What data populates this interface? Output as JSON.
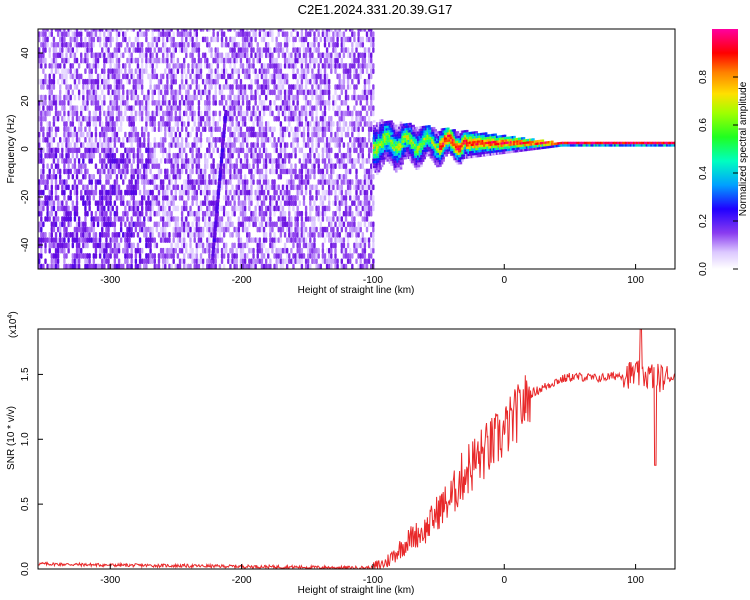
{
  "figure_title": "C2E1.2024.331.20.39.G17",
  "colors": {
    "spectrogram_palette": [
      "#ffffff",
      "#dcc8ff",
      "#9a52f0",
      "#6a10e0",
      "#3c00f0",
      "#0030ff",
      "#00c0ff",
      "#00ff80",
      "#80ff00",
      "#ffd000",
      "#ff6000",
      "#ff0000",
      "#ff0090"
    ],
    "snr_line": "#e8292a"
  },
  "chart_data": [
    {
      "type": "heatmap",
      "xlabel": "Height of straight line (km)",
      "ylabel": "Frequency (Hz)",
      "xlim": [
        -355,
        130
      ],
      "ylim": [
        -50,
        50
      ],
      "x_ticks": [
        -300,
        -200,
        -100,
        0,
        100
      ],
      "y_ticks": [
        -40,
        -20,
        0,
        20,
        40
      ],
      "colorbar": {
        "label": "Normalized spectral amplitude",
        "range": [
          0,
          1
        ],
        "ticks": [
          0.0,
          0.2,
          0.4,
          0.6,
          0.8
        ]
      },
      "features": {
        "noise_region_x": [
          -355,
          -100
        ],
        "carrier_region_x": [
          -100,
          130
        ],
        "carrier_frequency_hz": 2,
        "streak": {
          "x": [
            -222,
            -212
          ],
          "y": [
            -45,
            15
          ]
        }
      }
    },
    {
      "type": "line",
      "xlabel": "Height of straight line (km)",
      "ylabel": "SNR (10 * v/v)",
      "scale_label": "(x10",
      "scale_exp": "4",
      "scale_close": ")",
      "xlim": [
        -355,
        130
      ],
      "ylim": [
        0,
        1.85
      ],
      "x_ticks": [
        -300,
        -200,
        -100,
        0,
        100
      ],
      "y_ticks": [
        0.0,
        0.5,
        1.0,
        1.5
      ],
      "series": [
        {
          "x": [
            -355,
            -300,
            -200,
            -120,
            -100,
            -90,
            -80,
            -70,
            -60,
            -50,
            -40,
            -30,
            -20,
            -10,
            0,
            10,
            20,
            30,
            40,
            50,
            60,
            70,
            80,
            90,
            100,
            110,
            120,
            130
          ],
          "y": [
            0.04,
            0.03,
            0.02,
            0.01,
            0.01,
            0.05,
            0.15,
            0.25,
            0.3,
            0.45,
            0.55,
            0.75,
            0.85,
            0.95,
            1.05,
            1.2,
            1.35,
            1.4,
            1.45,
            1.48,
            1.48,
            1.47,
            1.48,
            1.5,
            1.5,
            1.49,
            1.47,
            1.48
          ]
        }
      ]
    }
  ]
}
